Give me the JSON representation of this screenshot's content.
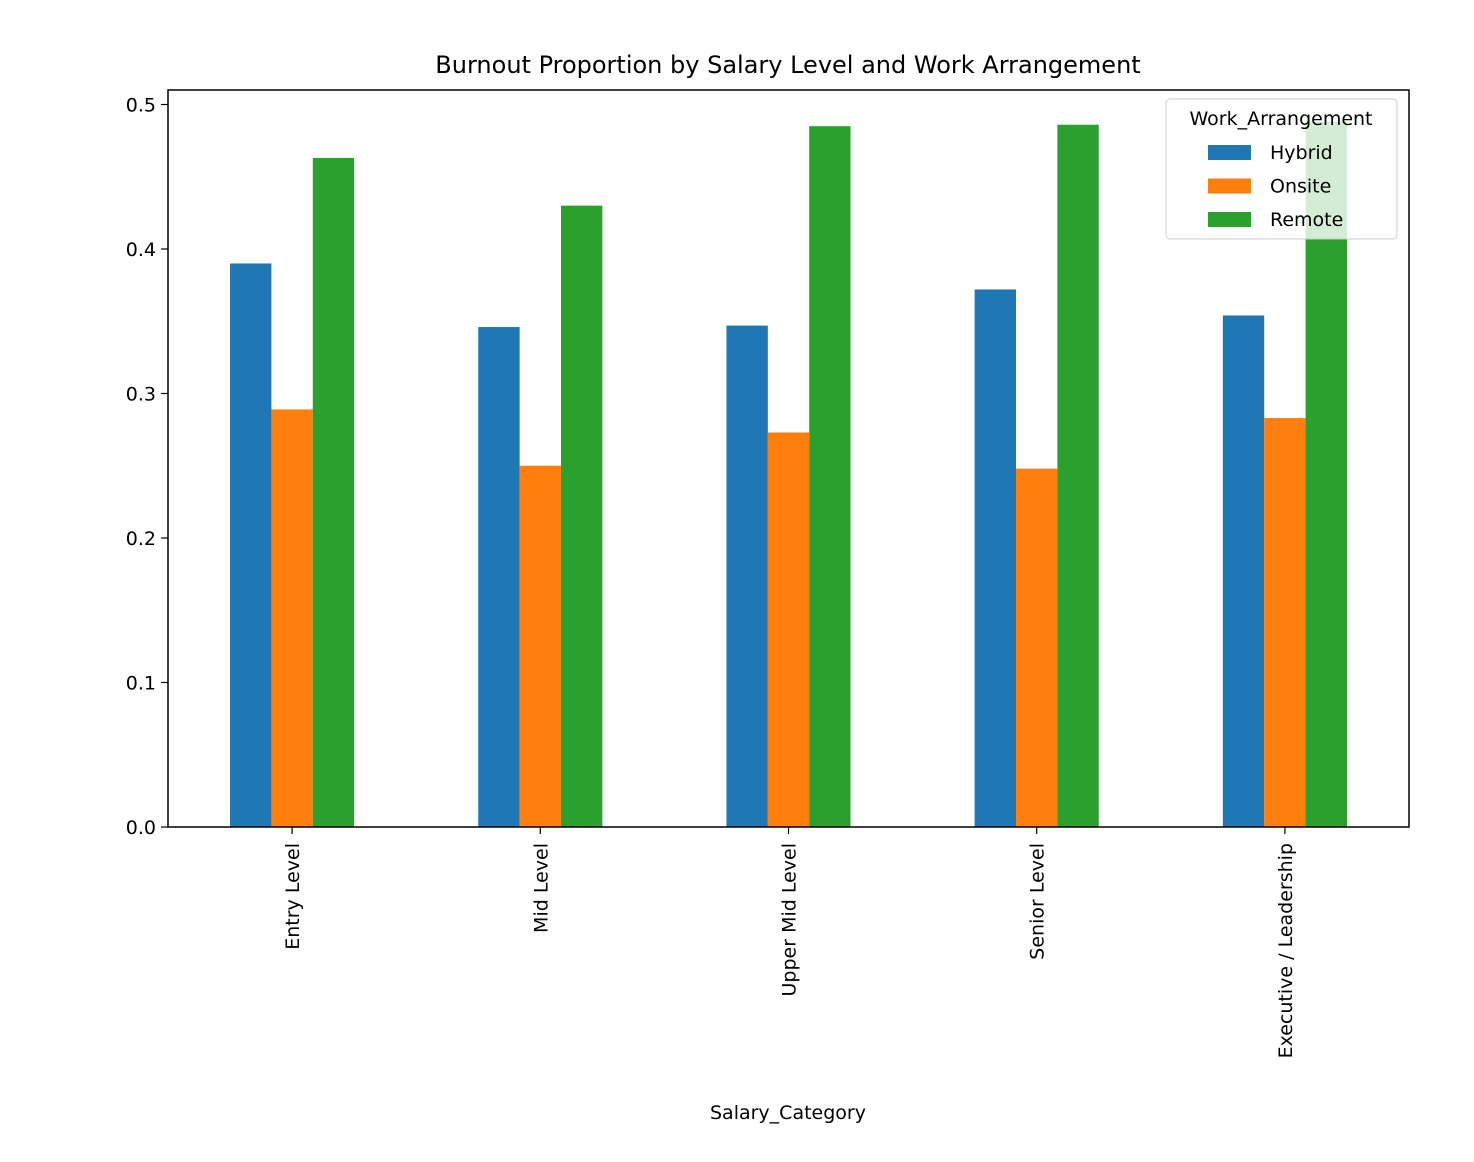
{
  "chart_data": {
    "type": "bar",
    "title": "Burnout Proportion by Salary Level and Work Arrangement",
    "xlabel": "Salary_Category",
    "ylabel": "",
    "ylim": [
      0,
      0.51
    ],
    "yticks": [
      0.0,
      0.1,
      0.2,
      0.3,
      0.4,
      0.5
    ],
    "ytick_labels": [
      "0.0",
      "0.1",
      "0.2",
      "0.3",
      "0.4",
      "0.5"
    ],
    "categories": [
      "Entry Level",
      "Mid Level",
      "Upper Mid Level",
      "Senior Level",
      "Executive / Leadership"
    ],
    "legend": {
      "title": "Work_Arrangement",
      "position": "top-right"
    },
    "grid": false,
    "series": [
      {
        "name": "Hybrid",
        "color": "#1f77b4",
        "values": [
          0.39,
          0.346,
          0.347,
          0.372,
          0.354
        ]
      },
      {
        "name": "Onsite",
        "color": "#ff7f0e",
        "values": [
          0.289,
          0.25,
          0.273,
          0.248,
          0.283
        ]
      },
      {
        "name": "Remote",
        "color": "#2ca02c",
        "values": [
          0.463,
          0.43,
          0.485,
          0.486,
          0.488
        ]
      }
    ]
  }
}
